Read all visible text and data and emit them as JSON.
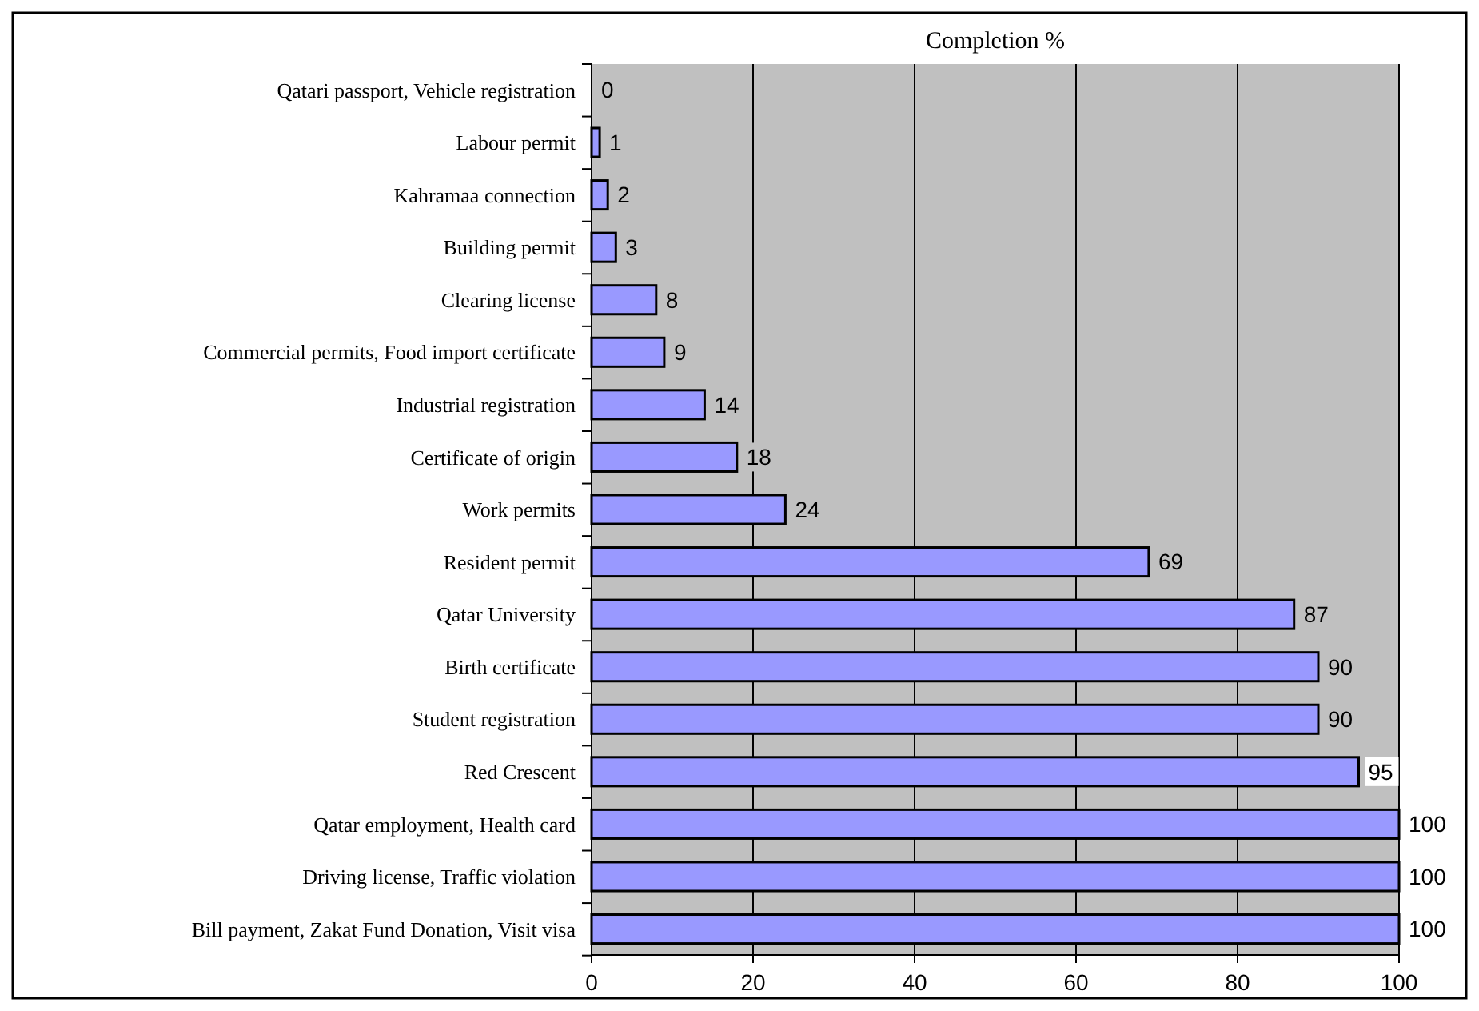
{
  "chart_data": {
    "type": "bar",
    "orientation": "horizontal",
    "title": "Completion %",
    "categories": [
      "Qatari passport, Vehicle registration",
      "Labour permit",
      "Kahramaa connection",
      "Building permit",
      "Clearing license",
      "Commercial permits, Food import certificate",
      "Industrial registration",
      "Certificate of origin",
      "Work permits",
      "Resident permit",
      "Qatar University",
      "Birth certificate",
      "Student registration",
      "Red Crescent",
      "Qatar employment, Health card",
      "Driving license, Traffic violation",
      "Bill payment, Zakat Fund Donation, Visit visa"
    ],
    "values": [
      0,
      1,
      2,
      3,
      8,
      9,
      14,
      18,
      24,
      69,
      87,
      90,
      90,
      95,
      100,
      100,
      100
    ],
    "color": "#9999ff",
    "xlim": [
      0,
      100
    ],
    "xticks": [
      0,
      20,
      40,
      60,
      80,
      100
    ],
    "grid": "x",
    "data_labels": true
  }
}
